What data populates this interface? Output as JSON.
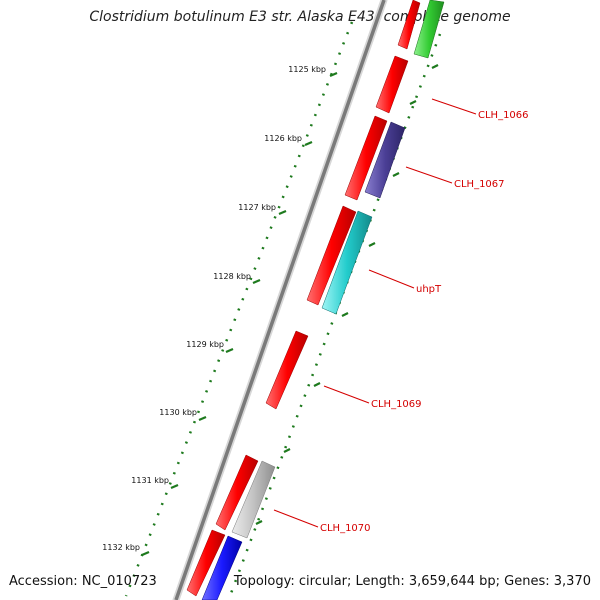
{
  "title": "Clostridium botulinum E3 str. Alaska E43, complete genome",
  "accession": "Accession: NC_010723",
  "summary": "Topology: circular; Length: 3,659,644 bp; Genes: 3,370",
  "ruler_labels": [
    "1125 kbp",
    "1126 kbp",
    "1127 kbp",
    "1128 kbp",
    "1129 kbp",
    "1130 kbp",
    "1131 kbp",
    "1132 kbp"
  ],
  "gene_labels": [
    "CLH_1066",
    "CLH_1067",
    "uhpT",
    "CLH_1069",
    "CLH_1070"
  ],
  "colors": {
    "backbone": "#7a7a7a",
    "ruler": "#1e7a1e",
    "cds": "#ff0000",
    "label": "#d40000",
    "green_feature": "#33cc33",
    "purple_feature": "#4b3f96",
    "cyan_feature": "#22cccc",
    "gray_feature": "#bdbdbd",
    "blue_feature": "#1a1aff"
  }
}
